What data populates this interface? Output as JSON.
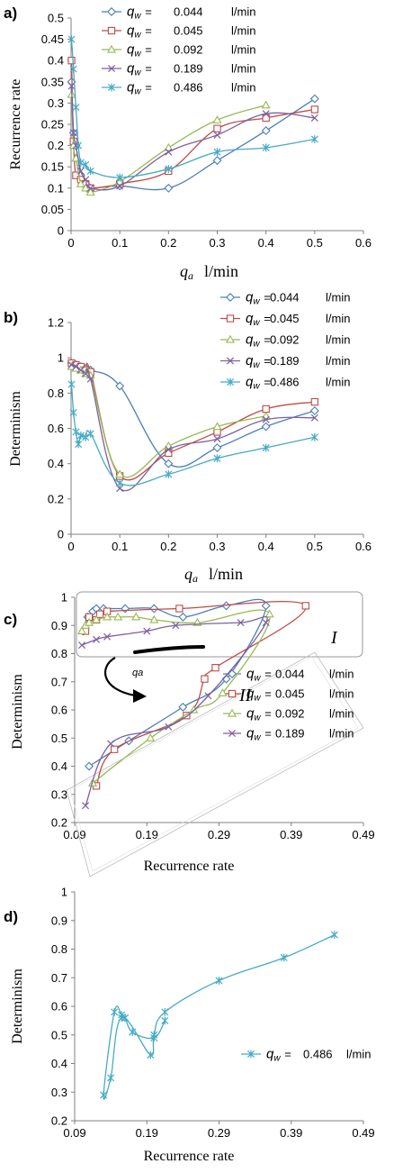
{
  "chart_data": [
    {
      "panel": "a)",
      "type": "line",
      "ylabel": "Recurrence rate",
      "xlabel_symbol": "q",
      "xlabel_sub": "a",
      "xlabel_unit": "l/min",
      "xlim": [
        0,
        0.6
      ],
      "ylim": [
        0,
        0.5
      ],
      "xticks": [
        0,
        0.1,
        0.2,
        0.3,
        0.4,
        0.5,
        0.6
      ],
      "yticks": [
        0,
        0.05,
        0.1,
        0.15,
        0.2,
        0.25,
        0.3,
        0.35,
        0.4,
        0.45,
        0.5
      ],
      "legend_position": "top-center",
      "series": [
        {
          "name": "qw = 0.044 l/min",
          "label_value": "0.044",
          "color": "#4a7ebb",
          "marker": "diamond",
          "x": [
            0.001,
            0.005,
            0.01,
            0.02,
            0.03,
            0.04,
            0.1,
            0.2,
            0.3,
            0.4,
            0.5
          ],
          "y": [
            0.35,
            0.23,
            0.2,
            0.13,
            0.11,
            0.1,
            0.105,
            0.1,
            0.165,
            0.235,
            0.31
          ]
        },
        {
          "name": "qw = 0.045 l/min",
          "label_value": "0.045",
          "color": "#be4b48",
          "marker": "square",
          "x": [
            0.001,
            0.005,
            0.01,
            0.02,
            0.03,
            0.04,
            0.1,
            0.2,
            0.3,
            0.4,
            0.5
          ],
          "y": [
            0.4,
            0.21,
            0.13,
            0.12,
            0.11,
            0.1,
            0.11,
            0.14,
            0.24,
            0.265,
            0.285
          ]
        },
        {
          "name": "qw = 0.092 l/min",
          "label_value": "0.092",
          "color": "#98b954",
          "marker": "triangle",
          "x": [
            0.001,
            0.005,
            0.01,
            0.02,
            0.03,
            0.04,
            0.1,
            0.2,
            0.3,
            0.4
          ],
          "y": [
            0.32,
            0.2,
            0.17,
            0.11,
            0.1,
            0.09,
            0.115,
            0.195,
            0.26,
            0.295
          ]
        },
        {
          "name": "qw = 0.189 l/min",
          "label_value": "0.189",
          "color": "#7d60a0",
          "marker": "x",
          "x": [
            0.001,
            0.005,
            0.01,
            0.02,
            0.03,
            0.04,
            0.1,
            0.2,
            0.3,
            0.4,
            0.5
          ],
          "y": [
            0.34,
            0.23,
            0.2,
            0.14,
            0.12,
            0.1,
            0.105,
            0.185,
            0.225,
            0.275,
            0.265
          ]
        },
        {
          "name": "qw = 0.486 l/min",
          "label_value": "0.486",
          "color": "#46aac5",
          "marker": "star",
          "x": [
            0.001,
            0.005,
            0.01,
            0.015,
            0.02,
            0.03,
            0.04,
            0.1,
            0.2,
            0.3,
            0.4,
            0.5
          ],
          "y": [
            0.45,
            0.38,
            0.29,
            0.2,
            0.16,
            0.155,
            0.14,
            0.125,
            0.145,
            0.185,
            0.195,
            0.215
          ]
        }
      ]
    },
    {
      "panel": "b)",
      "type": "line",
      "ylabel": "Determinism",
      "xlabel_symbol": "q",
      "xlabel_sub": "a",
      "xlabel_unit": "l/min",
      "xlim": [
        0,
        0.6
      ],
      "ylim": [
        0,
        1.2
      ],
      "xticks": [
        0,
        0.1,
        0.2,
        0.3,
        0.4,
        0.5,
        0.6
      ],
      "yticks": [
        0,
        0.2,
        0.4,
        0.6,
        0.8,
        1,
        1.2
      ],
      "legend_position": "right",
      "series": [
        {
          "name": "qw = 0.044 l/min",
          "label_value": "0.044",
          "color": "#4a7ebb",
          "marker": "diamond",
          "x": [
            0.001,
            0.01,
            0.02,
            0.03,
            0.04,
            0.1,
            0.2,
            0.3,
            0.4,
            0.5
          ],
          "y": [
            0.97,
            0.96,
            0.95,
            0.94,
            0.93,
            0.84,
            0.4,
            0.49,
            0.61,
            0.7
          ]
        },
        {
          "name": "qw = 0.045 l/min",
          "label_value": "0.045",
          "color": "#be4b48",
          "marker": "square",
          "x": [
            0.001,
            0.01,
            0.02,
            0.03,
            0.04,
            0.1,
            0.2,
            0.3,
            0.4,
            0.5
          ],
          "y": [
            0.97,
            0.96,
            0.95,
            0.93,
            0.92,
            0.33,
            0.46,
            0.58,
            0.71,
            0.75
          ]
        },
        {
          "name": "qw = 0.092 l/min",
          "label_value": "0.092",
          "color": "#98b954",
          "marker": "triangle",
          "x": [
            0.001,
            0.01,
            0.02,
            0.03,
            0.04,
            0.1,
            0.2,
            0.3,
            0.4
          ],
          "y": [
            0.95,
            0.94,
            0.93,
            0.91,
            0.9,
            0.34,
            0.5,
            0.61,
            0.67
          ]
        },
        {
          "name": "qw = 0.189 l/min",
          "label_value": "0.189",
          "color": "#7d60a0",
          "marker": "x",
          "x": [
            0.001,
            0.01,
            0.02,
            0.03,
            0.04,
            0.1,
            0.2,
            0.3,
            0.4,
            0.5
          ],
          "y": [
            0.96,
            0.95,
            0.93,
            0.91,
            0.88,
            0.26,
            0.48,
            0.54,
            0.65,
            0.66
          ]
        },
        {
          "name": "qw = 0.486 l/min",
          "label_value": "0.486",
          "color": "#46aac5",
          "marker": "star",
          "x": [
            0.001,
            0.005,
            0.01,
            0.015,
            0.02,
            0.03,
            0.04,
            0.1,
            0.2,
            0.3,
            0.4,
            0.5
          ],
          "y": [
            0.85,
            0.69,
            0.58,
            0.51,
            0.56,
            0.55,
            0.57,
            0.29,
            0.34,
            0.43,
            0.49,
            0.55
          ]
        }
      ]
    },
    {
      "panel": "c)",
      "type": "scatter",
      "ylabel": "Determinism",
      "xlabel": "Recurrence rate",
      "xlim": [
        0.09,
        0.49
      ],
      "ylim": [
        0.2,
        1
      ],
      "xticks": [
        0.09,
        0.19,
        0.29,
        0.39,
        0.49
      ],
      "yticks": [
        0.2,
        0.3,
        0.4,
        0.5,
        0.6,
        0.7,
        0.8,
        0.9,
        1
      ],
      "legend_position": "right",
      "annotations": [
        "I",
        "II",
        "q_a"
      ],
      "series": [
        {
          "name": "qw = 0.044 l/min",
          "label_value": "0.044",
          "color": "#4a7ebb",
          "marker": "diamond",
          "x": [
            0.102,
            0.108,
            0.115,
            0.12,
            0.13,
            0.16,
            0.2,
            0.24,
            0.3,
            0.355,
            0.3,
            0.24,
            0.165,
            0.11
          ],
          "y": [
            0.88,
            0.93,
            0.95,
            0.96,
            0.96,
            0.96,
            0.96,
            0.93,
            0.97,
            0.97,
            0.71,
            0.61,
            0.49,
            0.4
          ]
        },
        {
          "name": "qw = 0.045 l/min",
          "label_value": "0.045",
          "color": "#be4b48",
          "marker": "square",
          "x": [
            0.105,
            0.11,
            0.12,
            0.125,
            0.135,
            0.235,
            0.41,
            0.285,
            0.27,
            0.245,
            0.145,
            0.12
          ],
          "y": [
            0.88,
            0.93,
            0.92,
            0.94,
            0.95,
            0.96,
            0.97,
            0.75,
            0.71,
            0.58,
            0.46,
            0.33
          ]
        },
        {
          "name": "qw = 0.092 l/min",
          "label_value": "0.092",
          "color": "#98b954",
          "marker": "triangle",
          "x": [
            0.1,
            0.105,
            0.11,
            0.12,
            0.135,
            0.15,
            0.175,
            0.2,
            0.26,
            0.36,
            0.295,
            0.255,
            0.195,
            0.115
          ],
          "y": [
            0.88,
            0.9,
            0.91,
            0.92,
            0.93,
            0.93,
            0.93,
            0.92,
            0.91,
            0.94,
            0.66,
            0.6,
            0.5,
            0.34
          ]
        },
        {
          "name": "qw = 0.189 l/min",
          "label_value": "0.189",
          "color": "#7d60a0",
          "marker": "x",
          "x": [
            0.1,
            0.12,
            0.135,
            0.19,
            0.23,
            0.32,
            0.355,
            0.275,
            0.22,
            0.14,
            0.105
          ],
          "y": [
            0.83,
            0.85,
            0.86,
            0.88,
            0.9,
            0.91,
            0.91,
            0.65,
            0.54,
            0.48,
            0.26
          ]
        }
      ]
    },
    {
      "panel": "d)",
      "type": "scatter",
      "ylabel": "Determinism",
      "xlabel": "Recurrence rate",
      "xlim": [
        0.09,
        0.49
      ],
      "ylim": [
        0.2,
        1
      ],
      "xticks": [
        0.09,
        0.19,
        0.29,
        0.39,
        0.49
      ],
      "yticks": [
        0.2,
        0.3,
        0.4,
        0.5,
        0.6,
        0.7,
        0.8,
        0.9,
        1
      ],
      "legend_position": "right",
      "series": [
        {
          "name": "qw = 0.486 l/min",
          "label_value": "0.486",
          "color": "#46aac5",
          "marker": "star",
          "x": [
            0.45,
            0.38,
            0.29,
            0.215,
            0.2,
            0.195,
            0.155,
            0.14,
            0.13,
            0.145,
            0.155,
            0.16,
            0.17,
            0.2,
            0.215
          ],
          "y": [
            0.85,
            0.77,
            0.69,
            0.58,
            0.5,
            0.43,
            0.56,
            0.35,
            0.29,
            0.58,
            0.57,
            0.56,
            0.51,
            0.49,
            0.55
          ]
        }
      ]
    }
  ]
}
